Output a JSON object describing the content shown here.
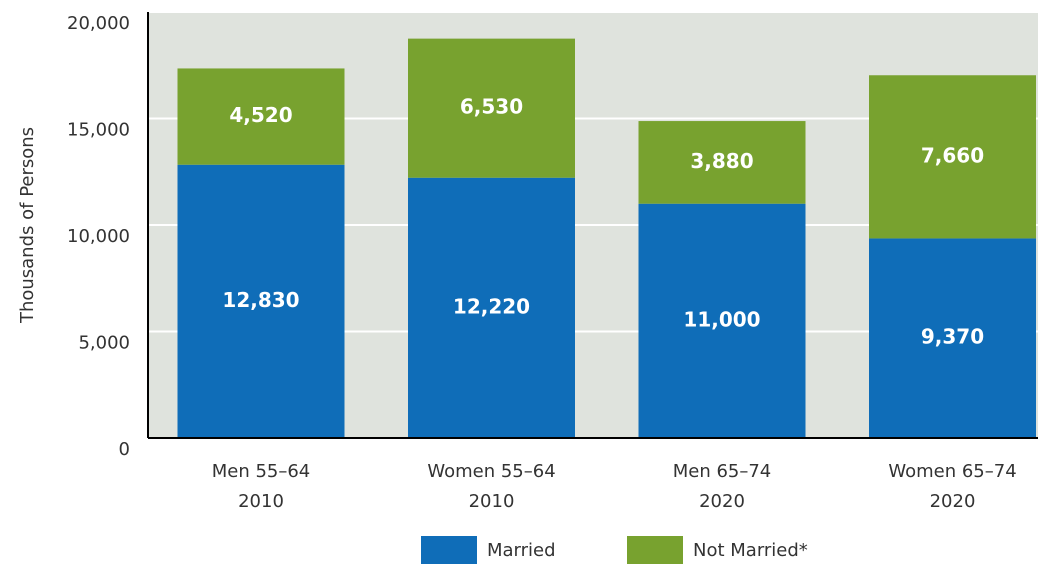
{
  "chart_data": {
    "type": "stacked_bar",
    "y_label": "Thousands of Persons",
    "categories": [
      [
        "Men 55–64",
        "2010"
      ],
      [
        "Women 55–64",
        "2010"
      ],
      [
        "Men 65–74",
        "2020"
      ],
      [
        "Women 65–74",
        "2020"
      ]
    ],
    "series": [
      {
        "name": "Married",
        "color": "#0f6db8",
        "values": [
          12830,
          12220,
          11000,
          9370
        ],
        "value_labels": [
          "12,830",
          "12,220",
          "11,000",
          "9,370"
        ]
      },
      {
        "name": "Not Married*",
        "color": "#78a22f",
        "values": [
          4520,
          6530,
          3880,
          7660
        ],
        "value_labels": [
          "4,520",
          "6,530",
          "3,880",
          "7,660"
        ]
      }
    ],
    "ylim": [
      0,
      20000
    ],
    "yticks": [
      0,
      {
        "value": 5000,
        "label": "5,000"
      },
      {
        "value": 10000,
        "label": "10,000"
      },
      {
        "value": 15000,
        "label": "15,000"
      },
      {
        "value": 20000,
        "label": "20,000"
      }
    ],
    "grid": true
  }
}
